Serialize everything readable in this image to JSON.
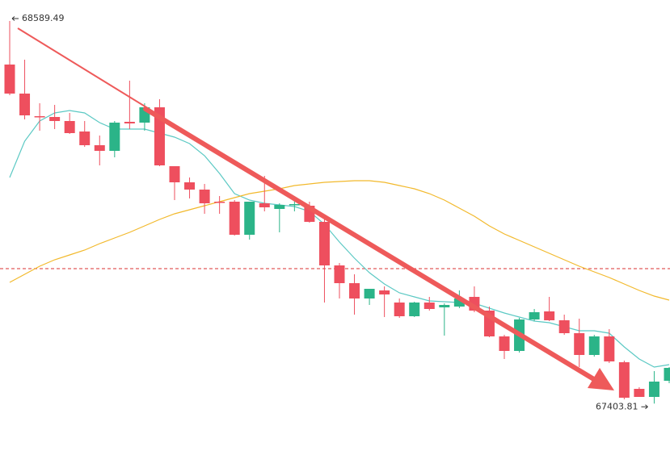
{
  "chart_data": {
    "type": "candlestick",
    "ylim": [
      67244.5,
      68654.5
    ],
    "up_color": "#2bb488",
    "down_color": "#ee4f5e",
    "open": [
      68454.5,
      68364.5,
      68294.5,
      68292,
      68279.5,
      68247,
      68204.5,
      68187,
      68277,
      68274.5,
      68322,
      68139.5,
      68089.5,
      68067,
      68029.5,
      68029.5,
      67927,
      68024.5,
      68007,
      68019.5,
      68017,
      67967,
      67832,
      67777,
      67729.5,
      67754.5,
      67717,
      67674.5,
      67717,
      67702,
      67704.5,
      67734.5,
      67692,
      67612,
      67567,
      67664.5,
      67689.5,
      67662,
      67622,
      67554.5,
      67612,
      67532,
      67449.5,
      67424.5,
      67474.5
    ],
    "high": [
      68589.49,
      68469.5,
      68334.5,
      68329.5,
      68304.5,
      68279.5,
      68234.5,
      68279.5,
      68404.5,
      68334.5,
      68347,
      68139.5,
      68104.5,
      68084.5,
      68047,
      68034.5,
      68029.5,
      68109.5,
      68024.5,
      68034.5,
      68029.5,
      67974.5,
      67839.5,
      67804.5,
      67759.5,
      67767,
      67729.5,
      67719.5,
      67734.5,
      67714.5,
      67754.5,
      67767,
      67704.5,
      67617,
      67669.5,
      67697,
      67734.5,
      67679.5,
      67667,
      67617,
      67634.5,
      67537,
      67454.5,
      67504.5,
      67517
    ],
    "low": [
      68359.5,
      68284.5,
      68249.5,
      68254.5,
      68239.5,
      68199.5,
      68142,
      68167,
      68254.5,
      68249.5,
      68139.5,
      68034.5,
      68039.5,
      67992,
      67992,
      67924.5,
      67912,
      67999.5,
      67934.5,
      67999.5,
      67964.5,
      67717,
      67729.5,
      67679.5,
      67709.5,
      67672,
      67669.5,
      67672,
      67692,
      67614.5,
      67699.5,
      67687,
      67609.5,
      67542,
      67562,
      67659.5,
      67659.5,
      67617,
      67517,
      67549.5,
      67529.5,
      67417,
      67424.5,
      67403.81,
      67467
    ],
    "close": [
      68364.5,
      68297,
      68292,
      68279.5,
      68242,
      68204.5,
      68187,
      68274.5,
      68272,
      68322,
      68142,
      68089.5,
      68067,
      68024.5,
      68027,
      67927,
      68029.5,
      68012,
      68019.5,
      68022,
      67967,
      67832,
      67777,
      67729.5,
      67759.5,
      67742,
      67674.5,
      67717,
      67697,
      67709.5,
      67729.5,
      67692,
      67612,
      67567,
      67664.5,
      67687,
      67662,
      67622,
      67554.5,
      67612,
      67534.5,
      67422,
      67424.5,
      67472,
      67514.5
    ],
    "ma_lines": [
      {
        "color": "#5cc9c4",
        "values": [
          68104.5,
          68217,
          68279.5,
          68304.5,
          68312,
          68304.5,
          68274.5,
          68254.5,
          68254.5,
          68254.5,
          68242,
          68229.5,
          68209.5,
          68172,
          68117,
          68054.5,
          68034.5,
          68024.5,
          68019.5,
          68014.5,
          67999.5,
          67959.5,
          67904.5,
          67854.5,
          67809.5,
          67774.5,
          67747,
          67734.5,
          67722,
          67719.5,
          67717,
          67714.5,
          67699.5,
          67684.5,
          67672,
          67659.5,
          67654.5,
          67642,
          67629.5,
          67629.5,
          67622,
          67579.5,
          67542,
          67517,
          67524.5
        ]
      },
      {
        "color": "#f2b92c",
        "values": [
          67779.5,
          67804.5,
          67829.5,
          67849.5,
          67864.5,
          67879.5,
          67899.5,
          67917,
          67934.5,
          67954.5,
          67974.5,
          67992,
          68004.5,
          68017,
          68029.5,
          68042,
          68054.5,
          68062,
          68069.5,
          68079.5,
          68084.5,
          68089.5,
          68092,
          68094.5,
          68094.5,
          68089.5,
          68079.5,
          68069.5,
          68054.5,
          68034.5,
          68009.5,
          67984.5,
          67954.5,
          67929.5,
          67909.5,
          67889.5,
          67869.5,
          67849.5,
          67829.5,
          67812,
          67794.5,
          67774.5,
          67754.5,
          67737,
          67724.5
        ]
      }
    ],
    "reference_line": {
      "value": 67822,
      "color": "#e25b5b"
    }
  }
}
